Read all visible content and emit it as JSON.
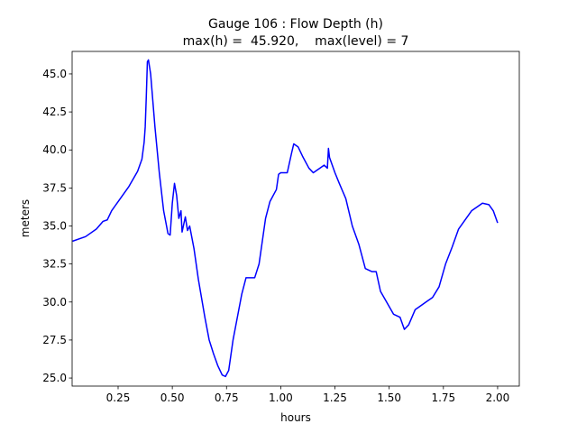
{
  "chart_data": {
    "type": "line",
    "title": "Gauge 106 : Flow Depth (h)",
    "subtitle": "max(h) =  45.920,    max(level) = 7",
    "x_label": "hours",
    "y_label": "meters",
    "color": "#0000ff",
    "x": [
      0.04,
      0.1,
      0.15,
      0.18,
      0.2,
      0.22,
      0.25,
      0.3,
      0.34,
      0.36,
      0.37,
      0.375,
      0.38,
      0.385,
      0.39,
      0.4,
      0.42,
      0.44,
      0.46,
      0.48,
      0.49,
      0.5,
      0.51,
      0.52,
      0.53,
      0.54,
      0.545,
      0.56,
      0.57,
      0.58,
      0.6,
      0.62,
      0.65,
      0.67,
      0.69,
      0.71,
      0.73,
      0.745,
      0.76,
      0.78,
      0.8,
      0.82,
      0.84,
      0.86,
      0.88,
      0.9,
      0.92,
      0.93,
      0.95,
      0.98,
      0.99,
      1.0,
      1.03,
      1.05,
      1.06,
      1.08,
      1.1,
      1.13,
      1.15,
      1.18,
      1.2,
      1.215,
      1.22,
      1.225,
      1.25,
      1.27,
      1.3,
      1.33,
      1.36,
      1.39,
      1.42,
      1.44,
      1.46,
      1.48,
      1.52,
      1.55,
      1.57,
      1.59,
      1.62,
      1.64,
      1.67,
      1.7,
      1.73,
      1.76,
      1.79,
      1.82,
      1.85,
      1.88,
      1.91,
      1.93,
      1.96,
      1.98,
      2.0
    ],
    "values": [
      34.0,
      34.3,
      34.8,
      35.3,
      35.4,
      36.0,
      36.6,
      37.6,
      38.6,
      39.4,
      40.5,
      41.5,
      43.5,
      45.8,
      45.92,
      45.0,
      41.5,
      38.5,
      36.0,
      34.5,
      34.4,
      36.5,
      37.8,
      37.0,
      35.5,
      36.0,
      34.6,
      35.6,
      34.7,
      35.0,
      33.5,
      31.5,
      29.0,
      27.5,
      26.6,
      25.8,
      25.2,
      25.1,
      25.5,
      27.5,
      29.0,
      30.5,
      31.6,
      31.6,
      31.6,
      32.5,
      34.5,
      35.5,
      36.6,
      37.4,
      38.4,
      38.5,
      38.5,
      39.8,
      40.4,
      40.2,
      39.6,
      38.8,
      38.5,
      38.8,
      39.0,
      38.8,
      40.1,
      39.5,
      38.5,
      37.8,
      36.8,
      35.0,
      33.8,
      32.2,
      32.0,
      32.0,
      30.7,
      30.2,
      29.2,
      29.0,
      28.2,
      28.5,
      29.5,
      29.7,
      30.0,
      30.3,
      31.0,
      32.5,
      33.6,
      34.8,
      35.4,
      36.0,
      36.3,
      36.5,
      36.4,
      36.0,
      35.2
    ],
    "xlim": [
      0.038,
      2.1
    ],
    "ylim": [
      24.47,
      46.48
    ],
    "xticks": [
      0.25,
      {
        "value": 0.5,
        "label": "0.50"
      },
      0.75,
      {
        "value": 1,
        "label": "1.00"
      },
      1.25,
      {
        "value": 1.5,
        "label": "1.50"
      },
      1.75,
      {
        "value": 2,
        "label": "2.00"
      }
    ],
    "yticks": [
      {
        "value": 25,
        "label": "25.0"
      },
      27.5,
      {
        "value": 30,
        "label": "30.0"
      },
      32.5,
      {
        "value": 35,
        "label": "35.0"
      },
      37.5,
      {
        "value": 40,
        "label": "40.0"
      },
      42.5,
      {
        "value": 45,
        "label": "45.0"
      }
    ],
    "grid": false
  }
}
